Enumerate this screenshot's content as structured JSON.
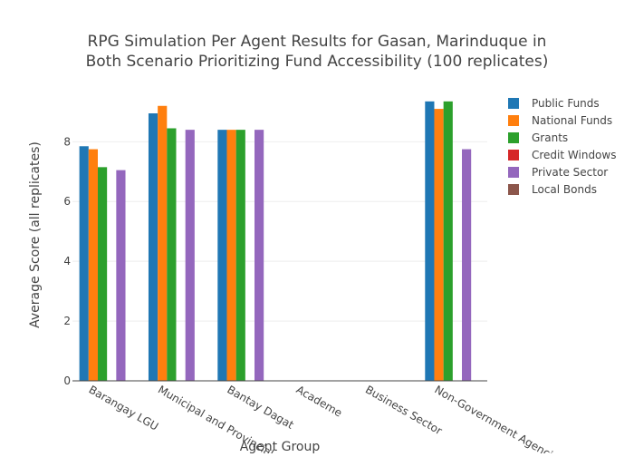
{
  "chart_data": {
    "type": "bar",
    "title_lines": [
      "RPG Simulation Per Agent Results for Gasan, Marinduque in",
      "Both Scenario Prioritizing Fund Accessibility (100 replicates)"
    ],
    "xlabel": "Agent Group",
    "ylabel": "Average Score (all replicates)",
    "ylim": [
      0,
      9.8
    ],
    "yticks": [
      0,
      2,
      4,
      6,
      8
    ],
    "grid": true,
    "legend_position": "top-right",
    "categories": [
      "Barangay LGU",
      "Municipal and Provincial",
      "Bantay Dagat",
      "Academe",
      "Business Sector",
      "Non-Government Agencies"
    ],
    "series": [
      {
        "name": "Public Funds",
        "color": "#1f77b4",
        "values": [
          7.85,
          8.95,
          8.4,
          0,
          0,
          9.35
        ]
      },
      {
        "name": "National Funds",
        "color": "#ff7f0e",
        "values": [
          7.75,
          9.2,
          8.4,
          0,
          0,
          9.1
        ]
      },
      {
        "name": "Grants",
        "color": "#2ca02c",
        "values": [
          7.15,
          8.45,
          8.4,
          0,
          0,
          9.35
        ]
      },
      {
        "name": "Credit Windows",
        "color": "#d62728",
        "values": [
          0,
          0,
          0,
          0,
          0,
          0
        ]
      },
      {
        "name": "Private Sector",
        "color": "#9467bd",
        "values": [
          7.05,
          8.4,
          8.4,
          0,
          0,
          7.75
        ]
      },
      {
        "name": "Local Bonds",
        "color": "#8c564b",
        "values": [
          0,
          0,
          0,
          0,
          0,
          0
        ]
      }
    ]
  }
}
